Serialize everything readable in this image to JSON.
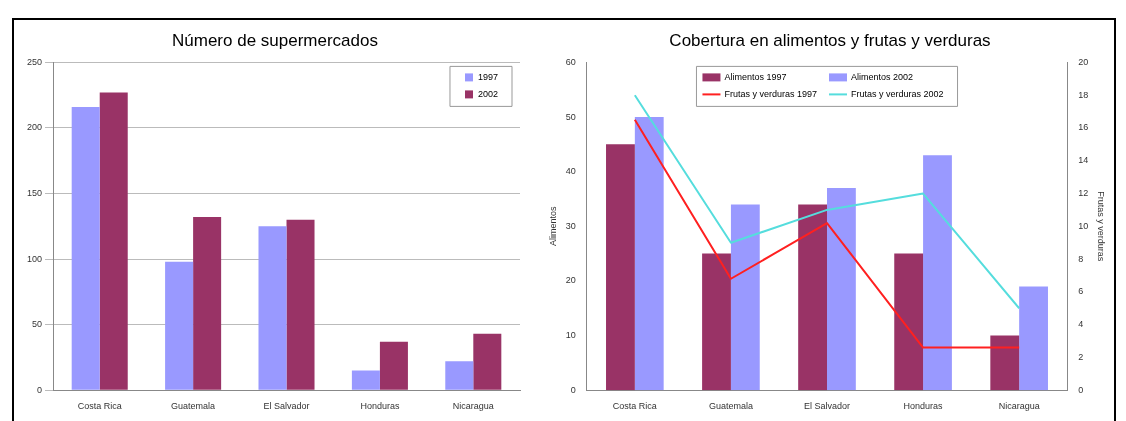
{
  "chart_data": [
    {
      "type": "bar",
      "title": "Número de supermercados",
      "categories": [
        "Costa Rica",
        "Guatemala",
        "El Salvador",
        "Honduras",
        "Nicaragua"
      ],
      "series": [
        {
          "name": "1997",
          "color": "#9999ff",
          "values": [
            216,
            98,
            125,
            15,
            22
          ]
        },
        {
          "name": "2002",
          "color": "#993366",
          "values": [
            227,
            132,
            130,
            37,
            43
          ]
        }
      ],
      "ylim": [
        0,
        250
      ],
      "yticks": [
        0,
        50,
        100,
        150,
        200,
        250
      ],
      "grid": "y",
      "legend": "top right"
    },
    {
      "type": "bar",
      "title": "Cobertura en alimentos y frutas y verduras",
      "categories": [
        "Costa Rica",
        "Guatemala",
        "El Salvador",
        "Honduras",
        "Nicaragua"
      ],
      "ylabel": "Alimentos",
      "y2label": "Frutas y verduras",
      "series": [
        {
          "name": "Alimentos 1997",
          "color": "#993366",
          "values": [
            45,
            25,
            34,
            25,
            10
          ]
        },
        {
          "name": "Alimentos 2002",
          "color": "#9999ff",
          "values": [
            50,
            34,
            37,
            43,
            19
          ]
        },
        {
          "name": "Frutas y verduras 1997",
          "type": "line",
          "axis": "y2",
          "color": "#ff2020",
          "values": [
            16.5,
            6.8,
            10.2,
            2.6,
            2.6
          ]
        },
        {
          "name": "Frutas y verduras 2002",
          "type": "line",
          "axis": "y2",
          "color": "#55dddd",
          "values": [
            18,
            9,
            11,
            12,
            5
          ]
        }
      ],
      "ylim": [
        0,
        60
      ],
      "yticks": [
        0,
        10,
        20,
        30,
        40,
        50,
        60
      ],
      "y2lim": [
        0,
        20
      ],
      "y2ticks": [
        0,
        2,
        4,
        6,
        8,
        10,
        12,
        14,
        16,
        18,
        20
      ],
      "legend": "top"
    }
  ]
}
